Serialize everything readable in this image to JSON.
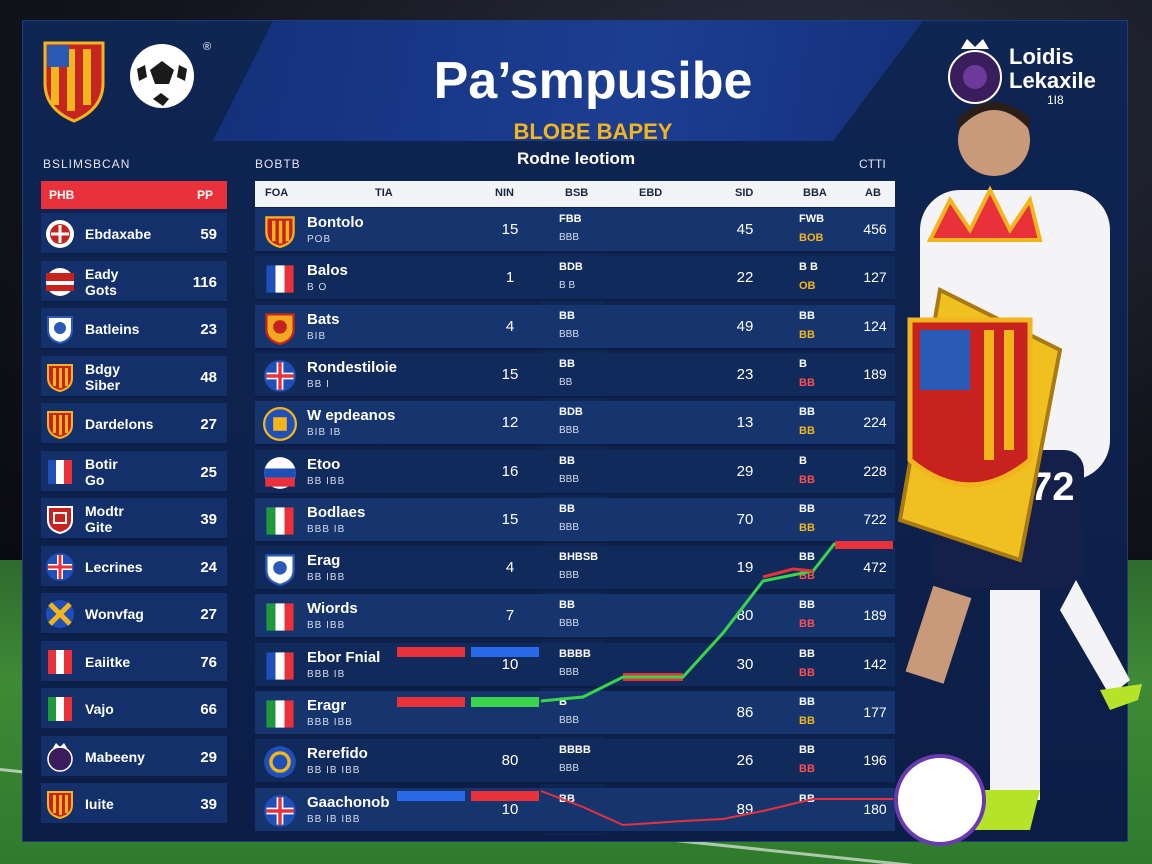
{
  "header": {
    "title": "Pa’smpusibe",
    "subtitle": "BLOBE BAPEY",
    "reg_mark": "®",
    "league_name_1": "Loidis",
    "league_name_2": "Lekaxile",
    "league_sub": "1I8"
  },
  "left_panel": {
    "label": "BSLIMSBCAN",
    "head_left": "PHB",
    "head_right": "PP",
    "rows": [
      {
        "name": "Ebdaxabe",
        "value": "59",
        "badge": "shield-red-white"
      },
      {
        "name": "Eady\nGots",
        "value": "116",
        "badge": "flag-red-white"
      },
      {
        "name": "Batleins",
        "value": "23",
        "badge": "shield-blue-white"
      },
      {
        "name": "Bdgy\nSiber",
        "value": "48",
        "badge": "shield-stripes"
      },
      {
        "name": "Dardelons",
        "value": "27",
        "badge": "shield-stripes"
      },
      {
        "name": "Botir\nGo",
        "value": "25",
        "badge": "flag-tricolor-blue"
      },
      {
        "name": "Modtr\nGite",
        "value": "39",
        "badge": "shield-red"
      },
      {
        "name": "Lecrines",
        "value": "24",
        "badge": "flag-union"
      },
      {
        "name": "Wonvfag",
        "value": "27",
        "badge": "flag-cross-yellow"
      },
      {
        "name": "Eaiitke",
        "value": "76",
        "badge": "flag-tricolor-red"
      },
      {
        "name": "Vajo",
        "value": "66",
        "badge": "flag-tricolor-green"
      },
      {
        "name": "Mabeeny",
        "value": "29",
        "badge": "lion-logo"
      },
      {
        "name": "Iuite",
        "value": "39",
        "badge": "shield-stripes"
      }
    ]
  },
  "main_table": {
    "label": "BOBTB",
    "title": "Rodne leotiom",
    "right_label": "CTTI",
    "headers": [
      "FOA",
      "TIA",
      "NIN",
      "BSB",
      "EBD",
      "SID",
      "BBA",
      "AB"
    ],
    "rows": [
      {
        "name": "Bontolo",
        "sub": "POB",
        "c1": "15",
        "c2a": "FBB",
        "c2b": "BBB",
        "c3": "45",
        "c4a": "FWB",
        "c4b": "BOB",
        "c4b_red": false,
        "c5": "456",
        "flag": "shield-stripes"
      },
      {
        "name": "Balos",
        "sub": "B O",
        "c1": "1",
        "c2a": "BDB",
        "c2b": "B B",
        "c3": "22",
        "c4a": "B B",
        "c4b": "OB",
        "c4b_red": false,
        "c5": "127",
        "flag": "flag-tricolor-blue"
      },
      {
        "name": "Bats",
        "sub": "BIB",
        "c1": "4",
        "c2a": "BB",
        "c2b": "BBB",
        "c3": "49",
        "c4a": "BB",
        "c4b": "BB",
        "c4b_red": false,
        "c5": "124",
        "flag": "shield-orange"
      },
      {
        "name": "Rondestiloie",
        "sub": "BB I",
        "c1": "15",
        "c2a": "BB",
        "c2b": "BB",
        "c3": "23",
        "c4a": "B",
        "c4b": "BB",
        "c4b_red": true,
        "c5": "189",
        "flag": "flag-union"
      },
      {
        "name": "W epdeanos",
        "sub": "BIB IB",
        "c1": "12",
        "c2a": "BDB",
        "c2b": "BBB",
        "c3": "13",
        "c4a": "BB",
        "c4b": "BB",
        "c4b_red": false,
        "c5": "224",
        "flag": "crest-round-blue"
      },
      {
        "name": "Etoo",
        "sub": "BB IBB",
        "c1": "16",
        "c2a": "BB",
        "c2b": "BBB",
        "c3": "29",
        "c4a": "B",
        "c4b": "BB",
        "c4b_red": true,
        "c5": "228",
        "flag": "flag-russia"
      },
      {
        "name": "Bodlaes",
        "sub": "BBB IB",
        "c1": "15",
        "c2a": "BB",
        "c2b": "BBB",
        "c3": "70",
        "c4a": "BB",
        "c4b": "BB",
        "c4b_red": false,
        "c5": "722",
        "flag": "flag-tricolor-green"
      },
      {
        "name": "Erag",
        "sub": "BB IBB",
        "c1": "4",
        "c2a": "BHBSB",
        "c2b": "BBB",
        "c3": "19",
        "c4a": "BB",
        "c4b": "BB",
        "c4b_red": true,
        "c5": "472",
        "flag": "shield-blue-white"
      },
      {
        "name": "Wiords",
        "sub": "BB IBB",
        "c1": "7",
        "c2a": "BB",
        "c2b": "BBB",
        "c3": "80",
        "c4a": "BB",
        "c4b": "BB",
        "c4b_red": true,
        "c5": "189",
        "flag": "flag-tricolor-green"
      },
      {
        "name": "Ebor Fnial",
        "sub": "BBB IB",
        "c1": "10",
        "c2a": "BBBB",
        "c2b": "BBB",
        "c3": "30",
        "c4a": "BB",
        "c4b": "BB",
        "c4b_red": true,
        "c5": "142",
        "flag": "flag-tricolor-blue"
      },
      {
        "name": "Eragr",
        "sub": "BBB IBB",
        "c1": "",
        "c2a": "B",
        "c2b": "BBB",
        "c3": "86",
        "c4a": "BB",
        "c4b": "BB",
        "c4b_red": false,
        "c5": "177",
        "flag": "flag-tricolor-green"
      },
      {
        "name": "Rerefido",
        "sub": "BB IB IBB",
        "c1": "80",
        "c2a": "BBBB",
        "c2b": "BBB",
        "c3": "26",
        "c4a": "BB",
        "c4b": "BB",
        "c4b_red": true,
        "c5": "196",
        "flag": "crest-round-yellow"
      },
      {
        "name": "Gaachonob",
        "sub": "BB IB IBB",
        "c1": "10",
        "c2a": "BB",
        "c2b": "",
        "c3": "89",
        "c4a": "BB",
        "c4b": "",
        "c4b_red": false,
        "c5": "180",
        "flag": "flag-union"
      }
    ]
  },
  "player": {
    "shirt_number": "72"
  },
  "colors": {
    "board_bg": "#0f2552",
    "accent_red": "#e8313a",
    "accent_gold": "#f2b51e",
    "row_alt": "#16356f",
    "chart_green": "#39d44a"
  }
}
